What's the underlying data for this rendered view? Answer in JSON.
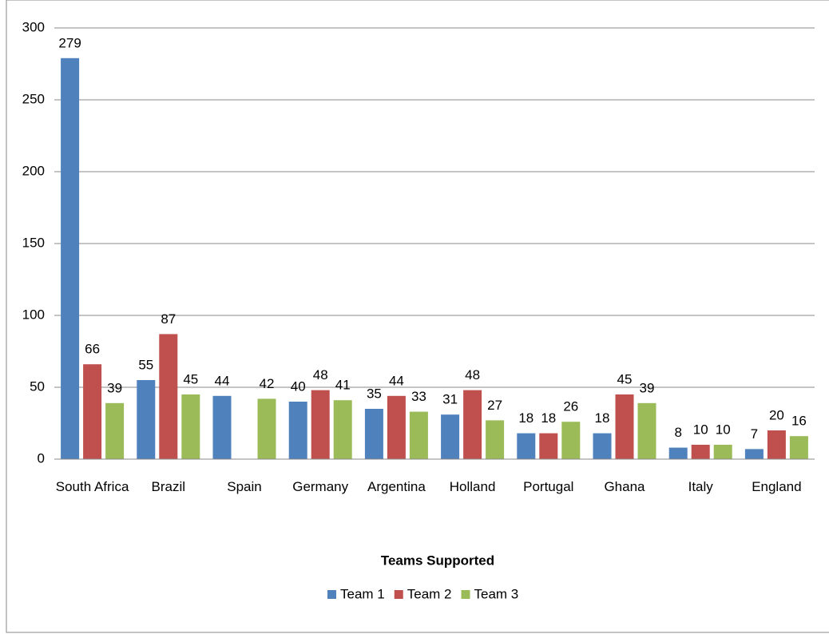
{
  "chart_data": {
    "type": "bar",
    "categories": [
      "South Africa",
      "Brazil",
      "Spain",
      "Germany",
      "Argentina",
      "Holland",
      "Portugal",
      "Ghana",
      "Italy",
      "England"
    ],
    "series": [
      {
        "name": "Team 1",
        "color": "#4f81bd",
        "values": [
          279,
          55,
          44,
          40,
          35,
          31,
          18,
          18,
          8,
          7
        ]
      },
      {
        "name": "Team 2",
        "color": "#c0504d",
        "values": [
          66,
          87,
          null,
          48,
          44,
          48,
          18,
          45,
          10,
          20
        ]
      },
      {
        "name": "Team 3",
        "color": "#9bbb59",
        "values": [
          39,
          45,
          42,
          41,
          33,
          27,
          26,
          39,
          10,
          16
        ]
      }
    ],
    "xlabel": "Teams Supported",
    "ylim": [
      0,
      300
    ],
    "yticks": [
      0,
      50,
      100,
      150,
      200,
      250,
      300
    ],
    "grid": true,
    "legend": "bottom"
  }
}
